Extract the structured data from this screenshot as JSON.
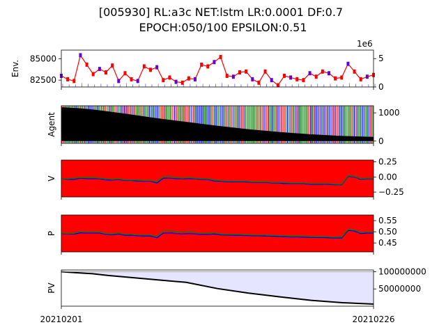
{
  "chart_data": {
    "title": [
      "[005930] RL:a3c NET:lstm LR:0.0001 DF:0.7",
      "EPOCH:050/100 EPSILON:0.51"
    ],
    "x_ticks": [
      "20210201",
      "20210226"
    ],
    "panels": [
      {
        "id": "env",
        "type": "line",
        "ylabel": "Env.",
        "left_ticks": [
          "85000",
          "82500"
        ],
        "left_tick_values": [
          85000,
          82500
        ],
        "left_ylim": [
          81700,
          86000
        ],
        "right_ticks": [
          "5",
          "0"
        ],
        "right_tick_values": [
          5,
          0
        ],
        "right_ylim": [
          0,
          6.5
        ],
        "right_offset": "1e6",
        "series": [
          {
            "name": "price",
            "color": "#ff0000",
            "values": [
              83000,
              82600,
              82400,
              85400,
              84300,
              83200,
              83800,
              83400,
              84200,
              82400,
              83300,
              82600,
              82400,
              84100,
              83700,
              84000,
              82500,
              82800,
              82300,
              82200,
              82700,
              82600,
              84300,
              84100,
              84600,
              85200,
              83000,
              82900,
              83400,
              83500,
              82600,
              82200,
              83500,
              82500,
              81900,
              83000,
              82800,
              82600,
              82500,
              83300,
              82900,
              83500,
              83300,
              82700,
              82800,
              84400,
              83500,
              82600,
              82900,
              83100
            ]
          },
          {
            "name": "volume",
            "color": "#0000ff",
            "values": [
              0.2,
              0.1,
              0.1,
              0.3,
              0.2,
              0.1,
              0.2,
              0.1,
              0.2,
              0.1,
              0.3,
              0.1,
              0.1,
              0.2,
              0.1,
              0.2,
              0.1,
              0.2,
              0.1,
              0.1,
              0.2,
              0.1,
              0.2,
              0.1,
              0.2,
              0.3,
              0.1,
              0.2,
              0.1,
              0.2,
              0.1,
              0.1,
              0.2,
              0.1,
              0.1,
              0.2,
              0.1,
              0.2,
              0.1,
              0.1,
              0.2,
              0.1,
              0.2,
              0.1,
              0.1,
              0.3,
              0.2,
              0.1,
              0.1,
              0.2
            ]
          }
        ]
      },
      {
        "id": "agent",
        "type": "area",
        "ylabel": "Agent",
        "right_ticks": [
          "1000",
          "0"
        ],
        "right_tick_values": [
          1000,
          0
        ],
        "right_ylim": [
          -80,
          1250
        ],
        "series": [
          {
            "name": "holdings",
            "color": "#000000",
            "x": [
              0,
              0.05,
              0.1,
              0.2,
              0.3,
              0.4,
              0.5,
              0.6,
              0.7,
              0.8,
              0.9,
              1.0
            ],
            "values": [
              1200,
              1170,
              1120,
              980,
              820,
              680,
              540,
              420,
              320,
              240,
              180,
              150
            ]
          }
        ],
        "background_colors": [
          "#ff0000",
          "#0000ff",
          "#008000"
        ]
      },
      {
        "id": "v",
        "type": "line",
        "ylabel": "V",
        "right_ticks": [
          "0.25",
          "0.00",
          "−0.25"
        ],
        "right_tick_values": [
          0.25,
          0.0,
          -0.25
        ],
        "right_ylim": [
          -0.33,
          0.28
        ],
        "background_color": "#ff0000",
        "series": [
          {
            "name": "value_buy",
            "color": "#0000ff",
            "values": [
              -0.03,
              -0.04,
              -0.04,
              -0.02,
              -0.03,
              -0.03,
              -0.03,
              -0.05,
              -0.05,
              -0.04,
              -0.06,
              -0.06,
              -0.07,
              -0.07,
              -0.07,
              -0.1,
              -0.02,
              -0.02,
              -0.03,
              -0.03,
              -0.03,
              -0.03,
              -0.04,
              -0.04,
              -0.07,
              -0.07,
              -0.08,
              -0.08,
              -0.08,
              -0.08,
              -0.09,
              -0.09,
              -0.09,
              -0.1,
              -0.1,
              -0.11,
              -0.11,
              -0.11,
              -0.11,
              -0.12,
              -0.12,
              -0.12,
              -0.12,
              -0.13,
              -0.13,
              0.01,
              0.0,
              -0.04,
              -0.03,
              -0.03
            ]
          },
          {
            "name": "value_sell",
            "color": "#008000",
            "values": [
              -0.03,
              -0.03,
              -0.02,
              -0.01,
              -0.01,
              -0.01,
              -0.02,
              -0.03,
              -0.04,
              -0.03,
              -0.05,
              -0.05,
              -0.05,
              -0.06,
              -0.06,
              -0.08,
              0.0,
              0.01,
              -0.01,
              -0.02,
              -0.01,
              -0.02,
              -0.03,
              -0.03,
              -0.05,
              -0.06,
              -0.07,
              -0.07,
              -0.07,
              -0.07,
              -0.08,
              -0.08,
              -0.08,
              -0.09,
              -0.09,
              -0.09,
              -0.1,
              -0.1,
              -0.1,
              -0.11,
              -0.11,
              -0.11,
              -0.11,
              -0.12,
              -0.12,
              0.02,
              0.01,
              -0.03,
              -0.02,
              -0.02
            ]
          }
        ]
      },
      {
        "id": "p",
        "type": "line",
        "ylabel": "P",
        "right_ticks": [
          "0.55",
          "0.50",
          "0.45"
        ],
        "right_tick_values": [
          0.55,
          0.5,
          0.45
        ],
        "right_ylim": [
          0.41,
          0.575
        ],
        "background_color": "#ff0000",
        "series": [
          {
            "name": "policy_buy",
            "color": "#0000ff",
            "values": [
              0.492,
              0.49,
              0.49,
              0.495,
              0.494,
              0.494,
              0.494,
              0.488,
              0.487,
              0.49,
              0.484,
              0.484,
              0.482,
              0.481,
              0.481,
              0.473,
              0.494,
              0.495,
              0.492,
              0.49,
              0.492,
              0.49,
              0.488,
              0.488,
              0.49,
              0.486,
              0.485,
              0.484,
              0.484,
              0.483,
              0.482,
              0.482,
              0.481,
              0.48,
              0.479,
              0.478,
              0.477,
              0.477,
              0.476,
              0.475,
              0.474,
              0.474,
              0.473,
              0.472,
              0.472,
              0.506,
              0.503,
              0.492,
              0.494,
              0.494
            ]
          },
          {
            "name": "policy_sell",
            "color": "#008000",
            "values": [
              0.494,
              0.492,
              0.493,
              0.502,
              0.5,
              0.5,
              0.498,
              0.492,
              0.49,
              0.494,
              0.488,
              0.488,
              0.486,
              0.485,
              0.485,
              0.478,
              0.503,
              0.505,
              0.5,
              0.497,
              0.5,
              0.497,
              0.494,
              0.493,
              0.496,
              0.49,
              0.489,
              0.488,
              0.488,
              0.487,
              0.486,
              0.485,
              0.485,
              0.484,
              0.483,
              0.482,
              0.481,
              0.481,
              0.48,
              0.479,
              0.478,
              0.478,
              0.477,
              0.476,
              0.476,
              0.51,
              0.507,
              0.496,
              0.498,
              0.498
            ]
          }
        ]
      },
      {
        "id": "pv",
        "type": "area",
        "ylabel": "PV",
        "right_ticks": [
          "100000000",
          "50000000"
        ],
        "right_tick_values": [
          100000000,
          50000000
        ],
        "right_ylim": [
          0,
          105000000
        ],
        "fill_color": "#e5e5ff",
        "series": [
          {
            "name": "portfolio_value",
            "color": "#000000",
            "x": [
              0,
              0.05,
              0.1,
              0.15,
              0.2,
              0.3,
              0.4,
              0.5,
              0.6,
              0.7,
              0.8,
              0.9,
              1.0
            ],
            "values": [
              100000000,
              97000000,
              94000000,
              89000000,
              85000000,
              77000000,
              69000000,
              51000000,
              38000000,
              27000000,
              17000000,
              10000000,
              6000000
            ]
          }
        ]
      }
    ]
  }
}
